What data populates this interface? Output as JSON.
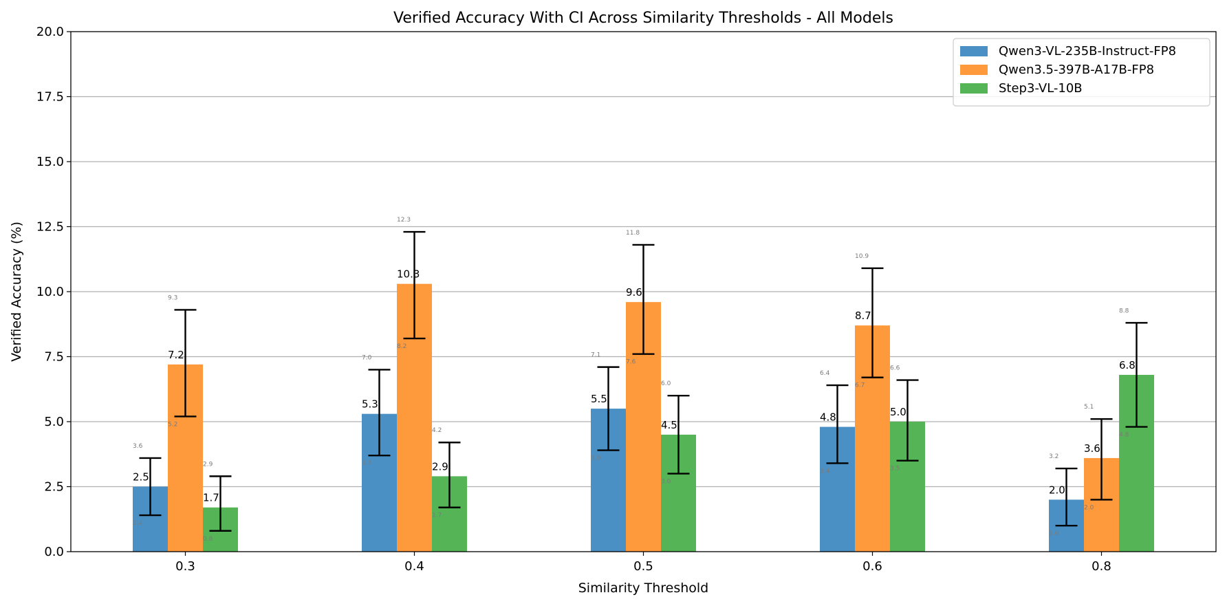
{
  "chart_data": {
    "type": "bar",
    "title": "Verified Accuracy With CI Across Similarity Thresholds - All Models",
    "xlabel": "Similarity Threshold",
    "ylabel": "Verified Accuracy (%)",
    "ylim": [
      0,
      20
    ],
    "yticks": [
      "0.0",
      "2.5",
      "5.0",
      "7.5",
      "10.0",
      "12.5",
      "15.0",
      "17.5",
      "20.0"
    ],
    "categories": [
      "0.3",
      "0.4",
      "0.5",
      "0.6",
      "0.8"
    ],
    "grid": "y",
    "legend_position": "top-right",
    "series": [
      {
        "name": "Qwen3-VL-235B-Instruct-FP8",
        "color": "#4a90c4",
        "values": [
          2.5,
          5.3,
          5.5,
          4.8,
          2.0
        ],
        "value_labels": [
          "2.5",
          "5.3",
          "5.5",
          "4.8",
          "2.0"
        ],
        "ci_low": [
          1.4,
          3.7,
          3.9,
          3.4,
          1.0
        ],
        "ci_high": [
          3.6,
          7.0,
          7.1,
          6.4,
          3.2
        ],
        "ci_low_labels": [
          "1.4",
          "3.7",
          "3.9",
          "3.4",
          "1.0"
        ],
        "ci_high_labels": [
          "3.6",
          "7.0",
          "7.1",
          "6.4",
          "3.2"
        ]
      },
      {
        "name": "Qwen3.5-397B-A17B-FP8",
        "color": "#ff9a3c",
        "values": [
          7.2,
          10.3,
          9.6,
          8.7,
          3.6
        ],
        "value_labels": [
          "7.2",
          "10.3",
          "9.6",
          "8.7",
          "3.6"
        ],
        "ci_low": [
          5.2,
          8.2,
          7.6,
          6.7,
          2.0
        ],
        "ci_high": [
          9.3,
          12.3,
          11.8,
          10.9,
          5.1
        ],
        "ci_low_labels": [
          "5.2",
          "8.2",
          "7.6",
          "6.7",
          "2.0"
        ],
        "ci_high_labels": [
          "9.3",
          "12.3",
          "11.8",
          "10.9",
          "5.1"
        ]
      },
      {
        "name": "Step3-VL-10B",
        "color": "#55b455",
        "values": [
          1.7,
          2.9,
          4.5,
          5.0,
          6.8
        ],
        "value_labels": [
          "1.7",
          "2.9",
          "4.5",
          "5.0",
          "6.8"
        ],
        "ci_low": [
          0.8,
          1.7,
          3.0,
          3.5,
          4.8
        ],
        "ci_high": [
          2.9,
          4.2,
          6.0,
          6.6,
          8.8
        ],
        "ci_low_labels": [
          "0.8",
          "1.7",
          "3.0",
          "3.5",
          "4.8"
        ],
        "ci_high_labels": [
          "2.9",
          "4.2",
          "6.0",
          "6.6",
          "8.8"
        ]
      }
    ]
  }
}
